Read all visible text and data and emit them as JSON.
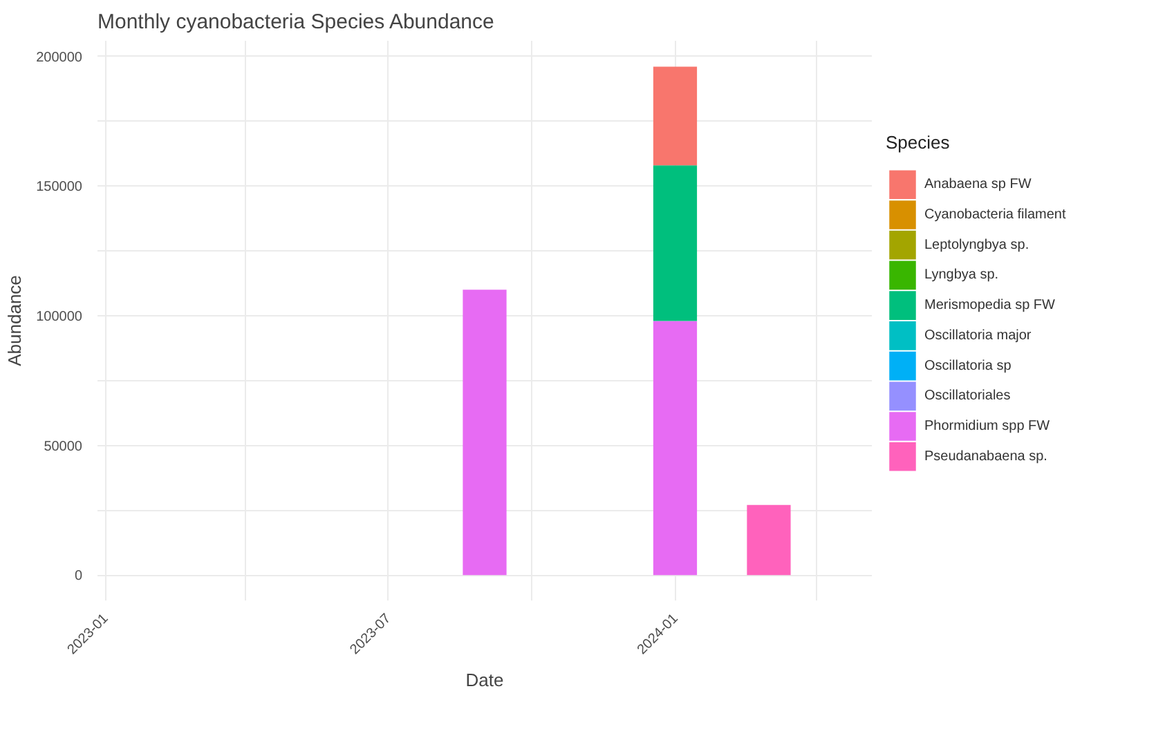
{
  "chart_data": {
    "type": "bar",
    "title": "Monthly cyanobacteria Species Abundance",
    "xlabel": "Date",
    "ylabel": "Abundance",
    "legend_title": "Species",
    "x": [
      "2023-09-01",
      "2024-01-01",
      "2024-03-01"
    ],
    "stacked": true,
    "series": [
      {
        "name": "Pseudanabaena sp.",
        "color": "#ff62bc",
        "values": [
          null,
          null,
          27000
        ]
      },
      {
        "name": "Phormidium spp FW",
        "color": "#e76bf3",
        "values": [
          110000,
          98000,
          null
        ]
      },
      {
        "name": "Oscillatoriales",
        "color": "#9590ff",
        "values": [
          null,
          null,
          null
        ]
      },
      {
        "name": "Oscillatoria sp",
        "color": "#00b0f6",
        "values": [
          null,
          null,
          null
        ]
      },
      {
        "name": "Oscillatoria major",
        "color": "#00bfc4",
        "values": [
          null,
          null,
          null
        ]
      },
      {
        "name": "Merismopedia sp FW",
        "color": "#00bf7d",
        "values": [
          null,
          60000,
          null
        ]
      },
      {
        "name": "Lyngbya sp.",
        "color": "#39b600",
        "values": [
          null,
          null,
          null
        ]
      },
      {
        "name": "Leptolyngbya sp.",
        "color": "#a3a500",
        "values": [
          null,
          null,
          null
        ]
      },
      {
        "name": "Cyanobacteria filament",
        "color": "#d89000",
        "values": [
          null,
          null,
          null
        ]
      },
      {
        "name": "Anabaena sp FW",
        "color": "#f8766d",
        "values": [
          null,
          38000,
          null
        ]
      }
    ],
    "xlim": [
      "2022-12-27",
      "2024-05-06"
    ],
    "xticks": [
      {
        "value": "2023-01-01",
        "label": "2023-01"
      },
      {
        "value": "2023-04-01",
        "label": null
      },
      {
        "value": "2023-07-01",
        "label": "2023-07"
      },
      {
        "value": "2023-10-01",
        "label": null
      },
      {
        "value": "2024-01-01",
        "label": "2024-01"
      },
      {
        "value": "2024-04-01",
        "label": null
      }
    ],
    "ylim": [
      -9800,
      206000
    ],
    "yticks": [
      0,
      {
        "value": 25000,
        "label": null
      },
      50000,
      {
        "value": 75000,
        "label": null
      },
      100000,
      {
        "value": 125000,
        "label": null
      },
      150000,
      {
        "value": 175000,
        "label": null
      },
      200000
    ],
    "grid": true,
    "legend": "right"
  }
}
